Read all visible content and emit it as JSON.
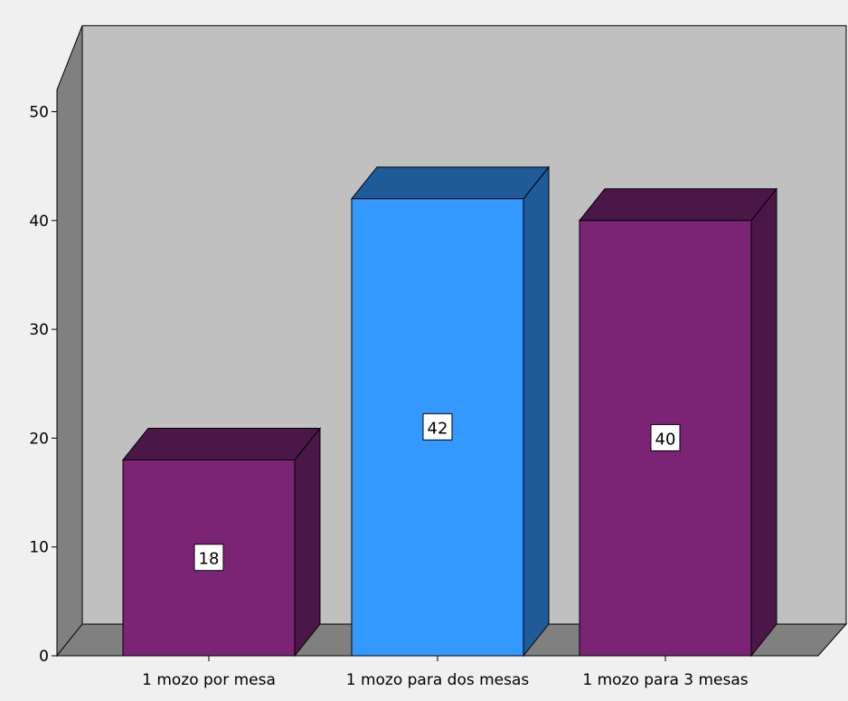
{
  "chart_data": {
    "type": "bar",
    "categories": [
      "1 mozo por mesa",
      "1 mozo para dos mesas",
      "1 mozo para 3 mesas"
    ],
    "values": [
      18,
      42,
      40
    ],
    "data_labels": [
      "18",
      "42",
      "40"
    ],
    "ylim": [
      0,
      55
    ],
    "yticks": [
      0,
      10,
      20,
      30,
      40,
      50
    ],
    "ytick_labels": [
      "0",
      "10",
      "20",
      "30",
      "40",
      "50"
    ],
    "title": "",
    "xlabel": "",
    "ylabel": "",
    "grid": false,
    "style": "3d",
    "colors": {
      "bars": [
        "#7b2476",
        "#3399ff",
        "#7b2476"
      ],
      "bar_side": [
        "#4b1748",
        "#1f5a99",
        "#4b1748"
      ],
      "wall": "#c0c0c0",
      "side_wall": "#808080",
      "floor": "#808080",
      "background": "#f0f0f0"
    }
  }
}
